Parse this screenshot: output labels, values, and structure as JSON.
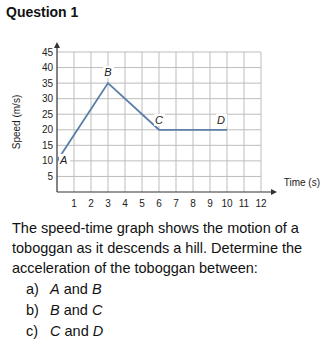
{
  "heading": "Question 1",
  "chart_data": {
    "type": "line",
    "x_label": "Time (s)",
    "y_label": "Speed (m/s)",
    "x": [
      0,
      3,
      6,
      10
    ],
    "values": [
      10,
      35,
      20,
      20
    ],
    "point_labels": [
      "A",
      "B",
      "C",
      "D"
    ],
    "color": "#5b7fa8",
    "grid": true,
    "xlim": [
      0,
      12
    ],
    "xticks": [
      1,
      2,
      3,
      4,
      5,
      6,
      7,
      8,
      9,
      10,
      11,
      12
    ],
    "ylim": [
      0,
      45
    ],
    "yticks": [
      5,
      10,
      15,
      20,
      25,
      30,
      35,
      40,
      45
    ]
  },
  "question": "The speed-time graph shows the motion of a toboggan as it descends a hill. Determine the acceleration of the toboggan between:",
  "parts": [
    {
      "label": "a)",
      "text": "A and B"
    },
    {
      "label": "b)",
      "text": "B and C"
    },
    {
      "label": "c)",
      "text": "C and D"
    }
  ]
}
